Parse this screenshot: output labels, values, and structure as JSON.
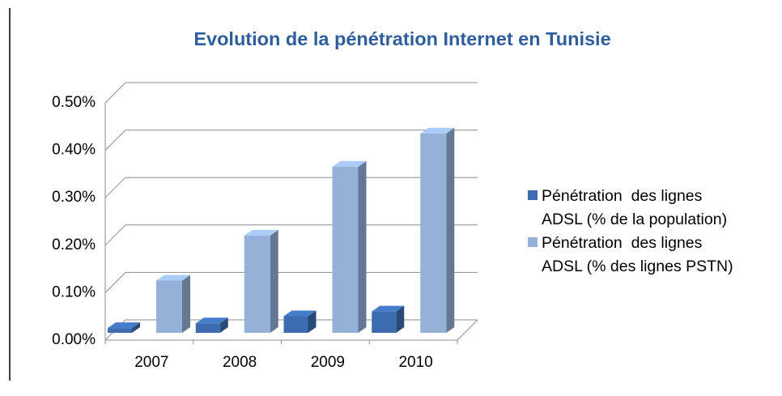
{
  "chart_data": {
    "type": "bar3d",
    "title": "Evolution de la pénétration Internet en Tunisie",
    "categories": [
      "2007",
      "2008",
      "2009",
      "2010"
    ],
    "series": [
      {
        "name": "Pénétration  des lignes\nADSL (% de la population)",
        "color": "#3d6db0",
        "values": [
          0.01,
          0.02,
          0.035,
          0.045
        ]
      },
      {
        "name": "Pénétration  des lignes\nADSL (% des lignes PSTN)",
        "color": "#95b1d8",
        "values": [
          0.11,
          0.205,
          0.35,
          0.42
        ]
      }
    ],
    "ylim": [
      0,
      0.5
    ],
    "yticks": [
      {
        "value": 0,
        "label": "0.00%"
      },
      {
        "value": 0.1,
        "label": "0.10%"
      },
      {
        "value": 0.2,
        "label": "0.20%"
      },
      {
        "value": 0.3,
        "label": "0.30%"
      },
      {
        "value": 0.4,
        "label": "0.40%"
      },
      {
        "value": 0.5,
        "label": "0.50%"
      }
    ],
    "grid": true,
    "legend": "right"
  }
}
